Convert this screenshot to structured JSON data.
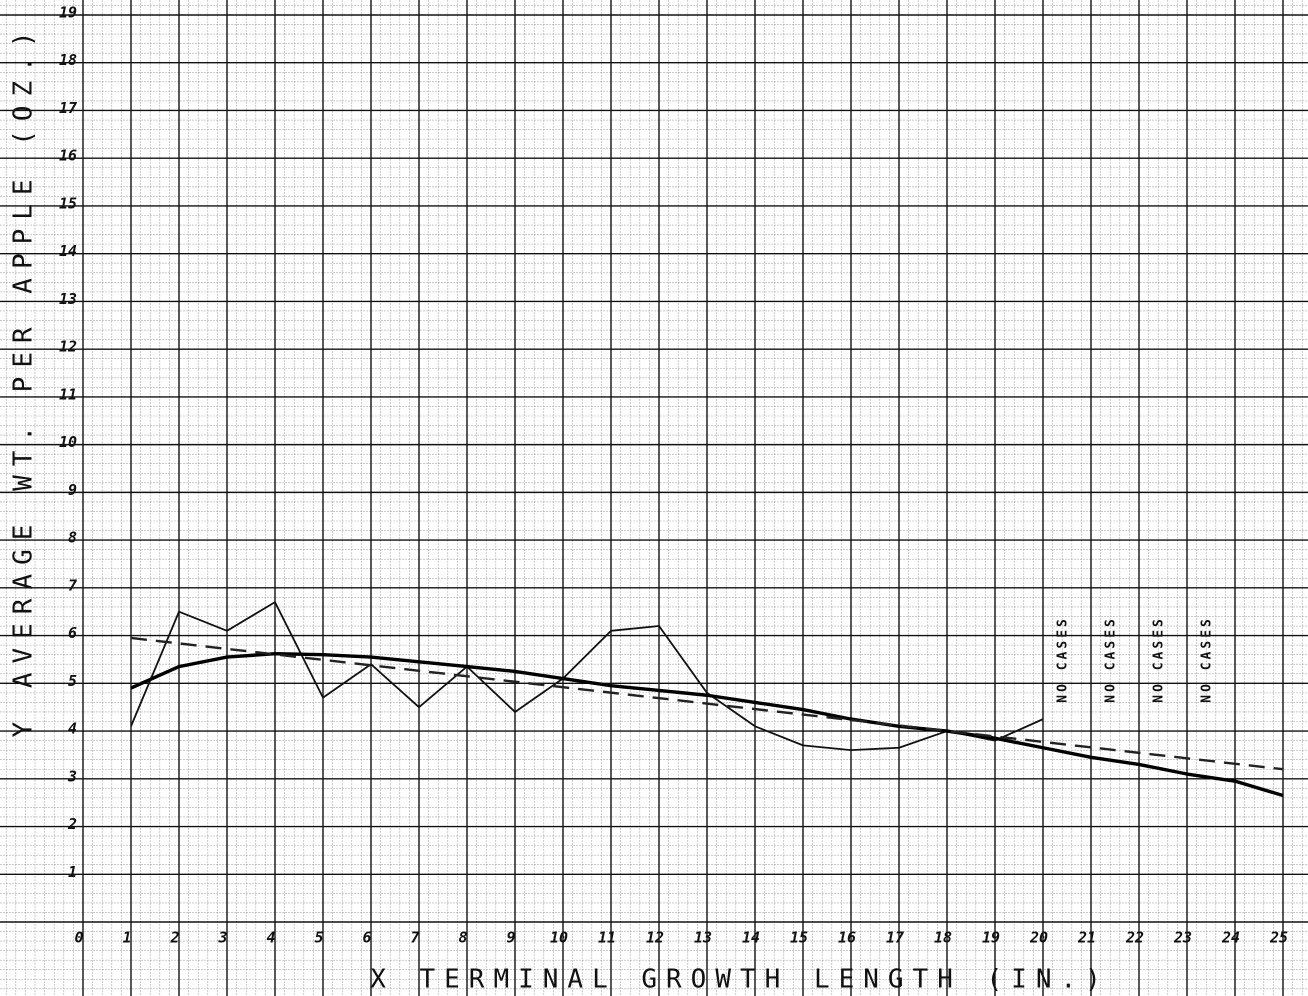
{
  "chart_data": {
    "type": "line",
    "x_label": "X TERMINAL GROWTH LENGTH (IN.)",
    "y_label": "Y AVERAGE WT. PER APPLE (OZ.)",
    "xlim": [
      0,
      25
    ],
    "ylim": [
      0,
      19
    ],
    "xticks": [
      0,
      1,
      2,
      3,
      4,
      5,
      6,
      7,
      8,
      9,
      10,
      11,
      12,
      13,
      14,
      15,
      16,
      17,
      18,
      19,
      20,
      21,
      22,
      23,
      24,
      25
    ],
    "yticks": [
      1,
      2,
      3,
      4,
      5,
      6,
      7,
      8,
      9,
      10,
      11,
      12,
      13,
      14,
      15,
      16,
      17,
      18,
      19
    ],
    "grid": true,
    "series": [
      {
        "color": "#111111",
        "style": "thin",
        "x": [
          1,
          2,
          3,
          4,
          5,
          6,
          7,
          8,
          9,
          10,
          11,
          12,
          13,
          14,
          15,
          16,
          17,
          18,
          19,
          20
        ],
        "values": [
          4.1,
          6.5,
          6.1,
          6.7,
          4.7,
          5.4,
          4.5,
          5.35,
          4.4,
          5.1,
          6.1,
          6.2,
          4.8,
          4.1,
          3.7,
          3.6,
          3.65,
          4.0,
          3.8,
          4.25
        ]
      },
      {
        "color": "#000000",
        "style": "bold",
        "x": [
          1,
          2,
          3,
          4,
          5,
          6,
          7,
          8,
          9,
          10,
          11,
          12,
          13,
          14,
          15,
          16,
          17,
          18,
          19,
          20,
          21,
          22,
          23,
          24,
          25
        ],
        "values": [
          4.9,
          5.35,
          5.55,
          5.62,
          5.6,
          5.55,
          5.45,
          5.35,
          5.25,
          5.1,
          4.95,
          4.85,
          4.75,
          4.6,
          4.45,
          4.25,
          4.1,
          4.0,
          3.85,
          3.65,
          3.45,
          3.3,
          3.1,
          2.95,
          2.65
        ]
      },
      {
        "color": "#222222",
        "style": "dashed",
        "x": [
          1,
          25
        ],
        "values": [
          5.95,
          3.2
        ]
      }
    ],
    "annotations": [
      {
        "text": "NO CASES",
        "x": 21
      },
      {
        "text": "NO CASES",
        "x": 22
      },
      {
        "text": "NO CASES",
        "x": 23
      },
      {
        "text": "NO CASES",
        "x": 24
      }
    ]
  }
}
